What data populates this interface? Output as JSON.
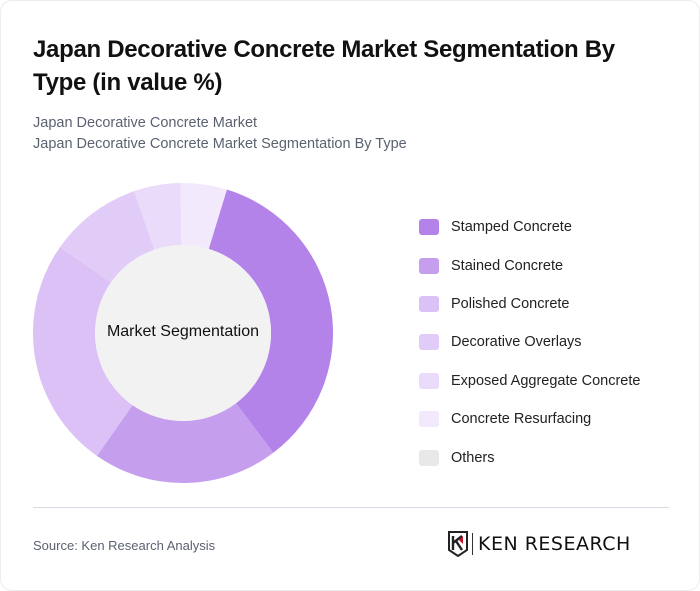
{
  "header": {
    "title": "Japan Decorative Concrete Market Segmentation By Type (in value %)",
    "subtitle_line1": "Japan Decorative Concrete Market",
    "subtitle_line2": "Japan Decorative Concrete Market Segmentation By Type"
  },
  "chart": {
    "center_label": "Market Segmentation"
  },
  "legend": {
    "items": [
      {
        "label": "Stamped Concrete",
        "color": "#b483ea"
      },
      {
        "label": "Stained Concrete",
        "color": "#c69eee"
      },
      {
        "label": "Polished Concrete",
        "color": "#dbc1f5"
      },
      {
        "label": "Decorative Overlays",
        "color": "#e1ccf7"
      },
      {
        "label": "Exposed Aggregate Concrete",
        "color": "#e9dbf9"
      },
      {
        "label": "Concrete Resurfacing",
        "color": "#f2eafc"
      },
      {
        "label": "Others",
        "color": "#e8e8e8"
      }
    ]
  },
  "footer": {
    "source": "Source: Ken Research Analysis",
    "logo_text": "KEN RESEARCH"
  },
  "chart_data": {
    "type": "pie",
    "subtype": "donut",
    "title": "Japan Decorative Concrete Market Segmentation By Type (in value %)",
    "subtitle": "Japan Decorative Concrete Market Segmentation By Type",
    "center_label": "Market Segmentation",
    "categories": [
      "Stamped Concrete",
      "Stained Concrete",
      "Polished Concrete",
      "Decorative Overlays",
      "Exposed Aggregate Concrete",
      "Concrete Resurfacing",
      "Others"
    ],
    "values": [
      35,
      20,
      25,
      10,
      5,
      5,
      0
    ],
    "colors": [
      "#b483ea",
      "#c69eee",
      "#dbc1f5",
      "#e1ccf7",
      "#e9dbf9",
      "#f2eafc",
      "#e8e8e8"
    ],
    "start_angle_deg": 17,
    "legend_position": "right",
    "unit": "%"
  }
}
